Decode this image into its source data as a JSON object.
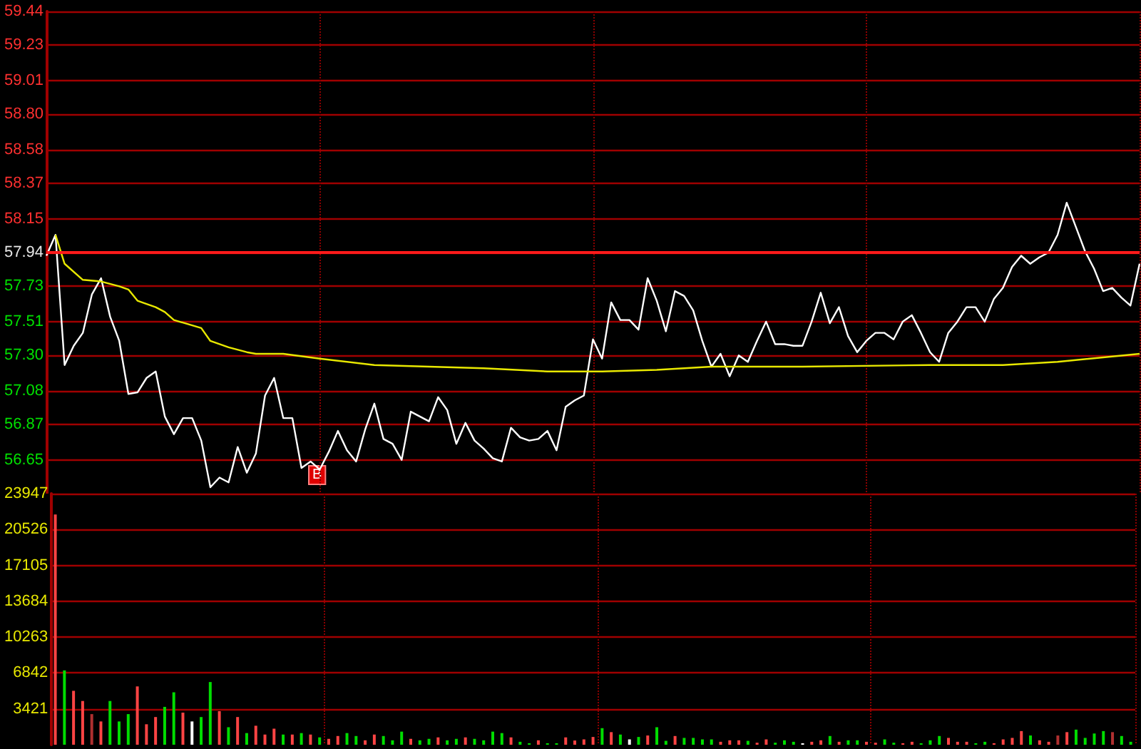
{
  "chart_data": [
    {
      "type": "line",
      "categories": [
        null,
        null,
        null,
        null,
        null,
        null,
        null,
        null,
        null,
        null,
        null,
        null,
        null,
        null,
        null,
        null,
        null,
        null,
        null,
        null,
        null,
        null,
        null,
        null,
        null,
        null,
        null,
        null,
        null,
        null,
        null,
        null,
        null,
        null,
        null,
        null,
        null,
        null,
        null,
        null,
        null,
        null,
        null,
        null,
        null,
        null,
        null,
        null,
        null,
        null,
        null,
        null,
        null,
        null,
        null,
        null,
        null,
        null,
        null,
        null,
        null,
        null,
        null,
        null,
        null,
        null,
        null,
        null,
        null,
        null,
        null,
        null,
        null,
        null,
        null,
        null,
        null,
        null,
        null,
        null,
        null,
        null,
        null,
        null,
        null,
        null,
        null,
        null,
        null,
        null,
        null,
        null,
        null,
        null,
        null,
        null,
        null,
        null,
        null,
        null,
        null,
        null,
        null,
        null,
        null,
        null,
        null,
        null,
        null,
        null,
        null,
        null,
        null,
        null,
        null,
        null,
        null,
        null,
        null,
        null,
        null
      ],
      "ylim": [
        56.44,
        59.44
      ],
      "yticks": [
        59.44,
        59.23,
        59.01,
        {
          "value": 58.8,
          "label": "58.80"
        },
        58.58,
        58.37,
        58.15,
        57.94,
        57.73,
        57.51,
        {
          "value": 57.3,
          "label": "57.30"
        },
        57.08,
        56.87,
        56.65
      ],
      "tick_labels": "y",
      "grid": true,
      "ref_lines": [
        {
          "axis": "y",
          "value": 57.94,
          "color": "#ff1a1a"
        }
      ],
      "annotations": [
        "B"
      ],
      "series": [
        {
          "color": "#ffffff",
          "values": [
            57.92,
            58.05,
            57.24,
            57.36,
            57.44,
            57.68,
            57.78,
            57.54,
            57.39,
            57.06,
            57.07,
            57.16,
            57.2,
            56.92,
            56.81,
            56.91,
            56.91,
            56.77,
            56.48,
            56.54,
            56.51,
            56.73,
            56.57,
            56.69,
            57.05,
            57.16,
            56.91,
            56.91,
            56.6,
            56.64,
            56.59,
            56.7,
            56.83,
            56.71,
            56.64,
            56.84,
            57.0,
            56.78,
            56.75,
            56.65,
            56.95,
            56.92,
            56.89,
            57.04,
            56.96,
            56.75,
            56.88,
            56.77,
            56.72,
            56.66,
            56.64,
            56.85,
            56.79,
            56.77,
            56.78,
            56.83,
            56.71,
            56.98,
            57.02,
            57.05,
            57.4,
            57.28,
            57.63,
            57.52,
            57.52,
            57.46,
            57.78,
            57.64,
            57.45,
            57.7,
            57.67,
            57.58,
            57.39,
            57.23,
            57.31,
            57.17,
            57.3,
            57.26,
            57.39,
            57.51,
            57.37,
            57.37,
            57.36,
            57.36,
            57.51,
            57.69,
            57.5,
            57.6,
            57.42,
            57.32,
            57.39,
            57.44,
            57.44,
            57.4,
            57.51,
            57.55,
            57.44,
            57.32,
            57.26,
            57.44,
            57.51,
            57.6,
            57.6,
            57.51,
            57.65,
            57.72,
            57.85,
            57.92,
            57.87,
            57.91,
            57.94,
            58.05,
            58.25,
            58.1,
            57.95,
            57.84,
            57.7,
            57.72,
            57.66,
            57.61,
            57.87
          ]
        },
        {
          "color": "#e8e800",
          "values": [
            null,
            58.05,
            57.87,
            null,
            57.77,
            null,
            57.76,
            null,
            57.73,
            57.71,
            57.64,
            null,
            57.6,
            57.57,
            57.52,
            null,
            null,
            57.47,
            57.39,
            null,
            57.35,
            null,
            57.32,
            57.31,
            null,
            null,
            57.31,
            null,
            null,
            null,
            57.28,
            null,
            null,
            null,
            null,
            null,
            57.24,
            null,
            null,
            null,
            null,
            null,
            57.23,
            null,
            null,
            null,
            null,
            null,
            57.22,
            null,
            null,
            null,
            null,
            null,
            null,
            57.2,
            null,
            null,
            null,
            null,
            null,
            57.2,
            null,
            null,
            null,
            null,
            null,
            57.21,
            null,
            null,
            null,
            null,
            null,
            57.23,
            null,
            null,
            null,
            null,
            null,
            null,
            null,
            null,
            null,
            57.23,
            null,
            null,
            null,
            null,
            null,
            null,
            null,
            null,
            null,
            null,
            null,
            null,
            null,
            57.24,
            null,
            null,
            null,
            null,
            null,
            null,
            null,
            57.24,
            null,
            null,
            null,
            null,
            null,
            57.26,
            null,
            null,
            null,
            null,
            null,
            null,
            null,
            null,
            57.31
          ]
        }
      ]
    },
    {
      "type": "bar",
      "categories": [
        null,
        null,
        null,
        null,
        null,
        null,
        null,
        null,
        null,
        null,
        null,
        null,
        null,
        null,
        null,
        null,
        null,
        null,
        null,
        null,
        null,
        null,
        null,
        null,
        null,
        null,
        null,
        null,
        null,
        null,
        null,
        null,
        null,
        null,
        null,
        null,
        null,
        null,
        null,
        null,
        null,
        null,
        null,
        null,
        null,
        null,
        null,
        null,
        null,
        null,
        null,
        null,
        null,
        null,
        null,
        null,
        null,
        null,
        null,
        null,
        null,
        null,
        null,
        null,
        null,
        null,
        null,
        null,
        null,
        null,
        null,
        null,
        null,
        null,
        null,
        null,
        null,
        null,
        null,
        null,
        null,
        null,
        null,
        null,
        null,
        null,
        null,
        null,
        null,
        null,
        null,
        null,
        null,
        null,
        null,
        null,
        null,
        null,
        null,
        null,
        null,
        null,
        null,
        null,
        null,
        null,
        null,
        null,
        null,
        null,
        null,
        null,
        null,
        null,
        null,
        null,
        null,
        null,
        null
      ],
      "ylim": [
        0,
        23947
      ],
      "yticks": [
        3421,
        6842,
        10263,
        13684,
        17105,
        20526,
        23947
      ],
      "tick_labels": "y",
      "grid": true,
      "values": [
        21960,
        7090,
        5140,
        4170,
        2920,
        2220,
        4170,
        2220,
        2920,
        5560,
        1950,
        2640,
        3610,
        5000,
        3060,
        2220,
        2640,
        5980,
        3200,
        1670,
        2640,
        1110,
        1810,
        970,
        1530,
        970,
        970,
        1110,
        970,
        700,
        560,
        830,
        1110,
        830,
        420,
        970,
        830,
        420,
        1250,
        560,
        420,
        560,
        700,
        420,
        560,
        700,
        560,
        420,
        1250,
        1110,
        700,
        280,
        140,
        420,
        140,
        140,
        700,
        400,
        510,
        740,
        1580,
        1200,
        970,
        510,
        740,
        880,
        1670,
        370,
        830,
        650,
        650,
        510,
        510,
        280,
        420,
        420,
        370,
        190,
        510,
        190,
        420,
        280,
        140,
        280,
        420,
        830,
        280,
        420,
        420,
        280,
        190,
        510,
        190,
        140,
        280,
        140,
        420,
        830,
        650,
        280,
        280,
        140,
        280,
        140,
        510,
        650,
        1300,
        880,
        420,
        280,
        880,
        1200,
        1440,
        650,
        1070,
        1300,
        1200,
        830,
        280
      ],
      "colors": [
        "#ff4444",
        "#00dd00",
        "#ff4444",
        "#ff4444",
        "#b03030",
        "#ff4444",
        "#00dd00",
        "#00dd00",
        "#00dd00",
        "#ff4444",
        "#ff4444",
        "#ff4444",
        "#00dd00",
        "#00dd00",
        "#ff4444",
        "#ffffff",
        "#00dd00",
        "#00dd00",
        "#ff4444",
        "#00dd00",
        "#ff4444",
        "#00dd00",
        "#ff4444",
        "#ff4444",
        "#ff4444",
        "#00dd00",
        "#ff4444",
        "#00dd00",
        "#ff4444",
        "#00dd00",
        "#ff4444",
        "#ff4444",
        "#00dd00",
        "#00dd00",
        "#ff4444",
        "#ff4444",
        "#00dd00",
        "#00dd00",
        "#00dd00",
        "#ff4444",
        "#00dd00",
        "#00dd00",
        "#ff4444",
        "#00dd00",
        "#00dd00",
        "#ff4444",
        "#00dd00",
        "#00dd00",
        "#00dd00",
        "#00dd00",
        "#ff4444",
        "#00dd00",
        "#00dd00",
        "#ff4444",
        "#00dd00",
        "#00dd00",
        "#ff4444",
        "#ff4444",
        "#ff4444",
        "#ff4444",
        "#00dd00",
        "#ff4444",
        "#00dd00",
        "#ffffff",
        "#00dd00",
        "#ff4444",
        "#00dd00",
        "#00dd00",
        "#ff4444",
        "#00dd00",
        "#00dd00",
        "#00dd00",
        "#00dd00",
        "#ff4444",
        "#ff4444",
        "#ff4444",
        "#00dd00",
        "#ff4444",
        "#ff4444",
        "#00dd00",
        "#00dd00",
        "#00dd00",
        "#ffffff",
        "#ff4444",
        "#ff4444",
        "#00dd00",
        "#ff4444",
        "#00dd00",
        "#00dd00",
        "#ff4444",
        "#ff4444",
        "#00dd00",
        "#00dd00",
        "#ff4444",
        "#ff4444",
        "#00dd00",
        "#00dd00",
        "#00dd00",
        "#ff4444",
        "#ff4444",
        "#ff4444",
        "#00dd00",
        "#00dd00",
        "#ff4444",
        "#ff4444",
        "#ff4444",
        "#ff4444",
        "#00dd00",
        "#ff4444",
        "#ff4444",
        "#b03030",
        "#ff4444",
        "#00dd00",
        "#00dd00",
        "#00dd00",
        "#00dd00",
        "#b03030",
        "#00dd00",
        "#00dd00"
      ]
    }
  ]
}
